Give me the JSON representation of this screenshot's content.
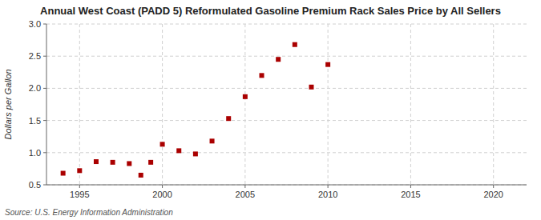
{
  "chart_data": {
    "type": "scatter",
    "title": "Annual West Coast (PADD 5) Reformulated Gasoline Premium Rack Sales Price by All Sellers",
    "y_label": "Dollars per Gallon",
    "source": "Source: U.S. Energy Information Administration",
    "x": [
      1994,
      1995,
      1996,
      1997,
      1998,
      1998.7,
      1999.3,
      2000,
      2001,
      2002,
      2003,
      2004,
      2005,
      2006,
      2007,
      2008,
      2009,
      2010
    ],
    "values": [
      0.68,
      0.72,
      0.86,
      0.85,
      0.83,
      0.65,
      0.85,
      1.13,
      1.03,
      0.98,
      1.18,
      1.53,
      1.87,
      2.2,
      2.45,
      2.68,
      2.02,
      2.37
    ],
    "color": "#aa0000",
    "marker": "square",
    "xlim": [
      1993,
      2022
    ],
    "ylim": [
      0.5,
      3.0
    ],
    "xticks": [
      1995,
      2000,
      2005,
      2010,
      2015,
      2020
    ],
    "yticks": [
      0.5,
      {
        "value": 1,
        "label": "1.0"
      },
      1.5,
      {
        "value": 2,
        "label": "2.0"
      },
      2.5,
      {
        "value": 3,
        "label": "3.0"
      }
    ],
    "grid": true
  }
}
